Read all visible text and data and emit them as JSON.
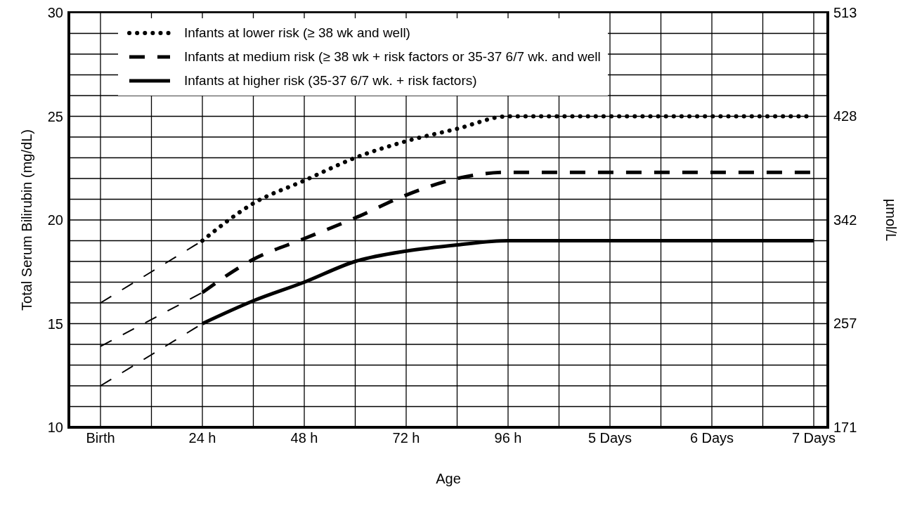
{
  "chart_data": {
    "type": "line",
    "xlabel": "Age",
    "ylabel": "Total Serum Bilirubin (mg/dL)",
    "y2label": "µmol/L",
    "categories": [
      "Birth",
      null,
      "24 h",
      null,
      "48 h",
      null,
      "72 h",
      null,
      "96 h",
      null,
      "5 Days",
      null,
      "6 Days",
      null,
      "7 Days"
    ],
    "ylim": [
      10,
      30
    ],
    "yticks": [
      10,
      {
        "value": 11,
        "label": null
      },
      {
        "value": 12,
        "label": null
      },
      {
        "value": 13,
        "label": null
      },
      {
        "value": 14,
        "label": null
      },
      15,
      {
        "value": 16,
        "label": null
      },
      {
        "value": 17,
        "label": null
      },
      {
        "value": 18,
        "label": null
      },
      {
        "value": 19,
        "label": null
      },
      20,
      {
        "value": 21,
        "label": null
      },
      {
        "value": 22,
        "label": null
      },
      {
        "value": 23,
        "label": null
      },
      {
        "value": 24,
        "label": null
      },
      25,
      {
        "value": 26,
        "label": null
      },
      {
        "value": 27,
        "label": null
      },
      {
        "value": 28,
        "label": null
      },
      {
        "value": 29,
        "label": null
      },
      30
    ],
    "y2lim": [
      171,
      513
    ],
    "y2ticks": [
      171,
      257,
      342,
      428,
      513
    ],
    "grid": true,
    "legend": "top left",
    "marker": "none",
    "series": [
      {
        "name": "Infants at lower risk (≥ 38 wk and well)",
        "color": "#000000",
        "line_style": "dotted",
        "values": [
          null,
          null,
          19,
          20.8,
          21.9,
          23,
          23.8,
          24.4,
          25,
          25,
          25,
          25,
          25,
          25,
          25
        ]
      },
      {
        "name": "Infants at medium risk (≥ 38 wk + risk factors or 35-37 6/7 wk. and well",
        "color": "#000000",
        "line_style": "dashed",
        "values": [
          null,
          null,
          16.5,
          18.1,
          19.1,
          20.1,
          21.2,
          22,
          22.3,
          22.3,
          22.3,
          22.3,
          22.3,
          22.3,
          22.3
        ]
      },
      {
        "name": "Infants at higher risk (35-37 6/7 wk. + risk factors)",
        "color": "#000000",
        "line_style": "solid",
        "values": [
          null,
          null,
          15,
          16.1,
          17,
          18,
          18.5,
          18.8,
          19,
          19,
          19,
          19,
          19,
          19,
          19
        ]
      },
      {
        "color": "#000000",
        "line_style": "dashed",
        "values": [
          16,
          17.5,
          19,
          null,
          null,
          null,
          null,
          null,
          null,
          null,
          null,
          null,
          null,
          null,
          null
        ]
      },
      {
        "color": "#000000",
        "line_style": "dashed",
        "values": [
          13.9,
          15.2,
          16.5,
          null,
          null,
          null,
          null,
          null,
          null,
          null,
          null,
          null,
          null,
          null,
          null
        ]
      },
      {
        "color": "#000000",
        "line_style": "dashed",
        "values": [
          12,
          13.5,
          15,
          null,
          null,
          null,
          null,
          null,
          null,
          null,
          null,
          null,
          null,
          null,
          null
        ]
      }
    ]
  }
}
